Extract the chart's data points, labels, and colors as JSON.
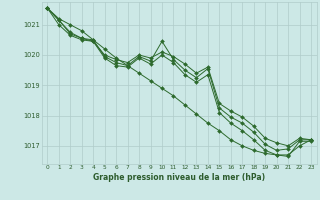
{
  "background_color": "#cce8e6",
  "grid_color": "#b0ccca",
  "line_color": "#2d6a2d",
  "marker_color": "#2d6a2d",
  "text_color": "#2d5c2d",
  "xlabel": "Graphe pression niveau de la mer (hPa)",
  "x_ticks": [
    0,
    1,
    2,
    3,
    4,
    5,
    6,
    7,
    8,
    9,
    10,
    11,
    12,
    13,
    14,
    15,
    16,
    17,
    18,
    19,
    20,
    21,
    22,
    23
  ],
  "ylim": [
    1016.4,
    1021.75
  ],
  "y_ticks": [
    1017,
    1018,
    1019,
    1020,
    1021
  ],
  "series": [
    [
      1021.55,
      1021.15,
      1020.75,
      1020.55,
      1020.5,
      1019.95,
      1019.75,
      1019.65,
      1019.95,
      1019.8,
      1020.45,
      1019.85,
      1019.5,
      1019.25,
      1019.55,
      1018.25,
      1017.95,
      1017.75,
      1017.45,
      1017.05,
      1016.85,
      1016.9,
      1017.2,
      1017.2
    ],
    [
      1021.55,
      1021.15,
      1020.7,
      1020.55,
      1020.45,
      1019.9,
      1019.65,
      1019.6,
      1019.9,
      1019.7,
      1020.0,
      1019.75,
      1019.35,
      1019.1,
      1019.35,
      1018.1,
      1017.75,
      1017.5,
      1017.2,
      1016.85,
      1016.7,
      1016.7,
      1017.0,
      1017.2
    ],
    [
      1021.55,
      1021.0,
      1020.65,
      1020.5,
      1020.45,
      1020.0,
      1019.85,
      1019.75,
      1020.0,
      1019.9,
      1020.1,
      1019.95,
      1019.7,
      1019.4,
      1019.6,
      1018.4,
      1018.15,
      1017.95,
      1017.65,
      1017.25,
      1017.1,
      1017.0,
      1017.25,
      1017.2
    ],
    [
      1021.55,
      1021.2,
      1021.0,
      1020.8,
      1020.5,
      1020.2,
      1019.9,
      1019.65,
      1019.4,
      1019.15,
      1018.9,
      1018.65,
      1018.35,
      1018.05,
      1017.75,
      1017.5,
      1017.2,
      1017.0,
      1016.85,
      1016.75,
      1016.7,
      1016.65,
      1017.15,
      1017.15
    ]
  ]
}
